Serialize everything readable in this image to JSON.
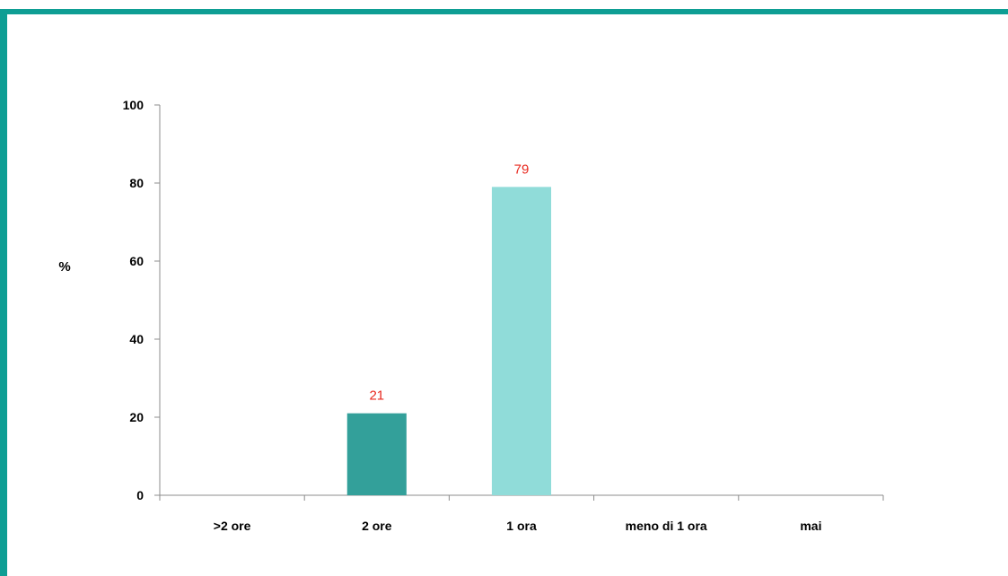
{
  "chart_data": {
    "type": "bar",
    "categories": [
      ">2 ore",
      "2 ore",
      "1 ora",
      "meno di 1 ora",
      "mai"
    ],
    "values": [
      null,
      21,
      79,
      null,
      null
    ],
    "data_labels": [
      "",
      "21",
      "79",
      "",
      ""
    ],
    "bar_colors": [
      "#33a09a",
      "#33a09a",
      "#90dcd9",
      "#33a09a",
      "#33a09a"
    ],
    "label_color": "#e8281e",
    "ylabel": "%",
    "ylim": [
      0,
      100
    ],
    "yticks": [
      "0",
      "20",
      "40",
      "60",
      "80",
      "100"
    ],
    "grid": false,
    "frame_color": "#0e9e94"
  }
}
